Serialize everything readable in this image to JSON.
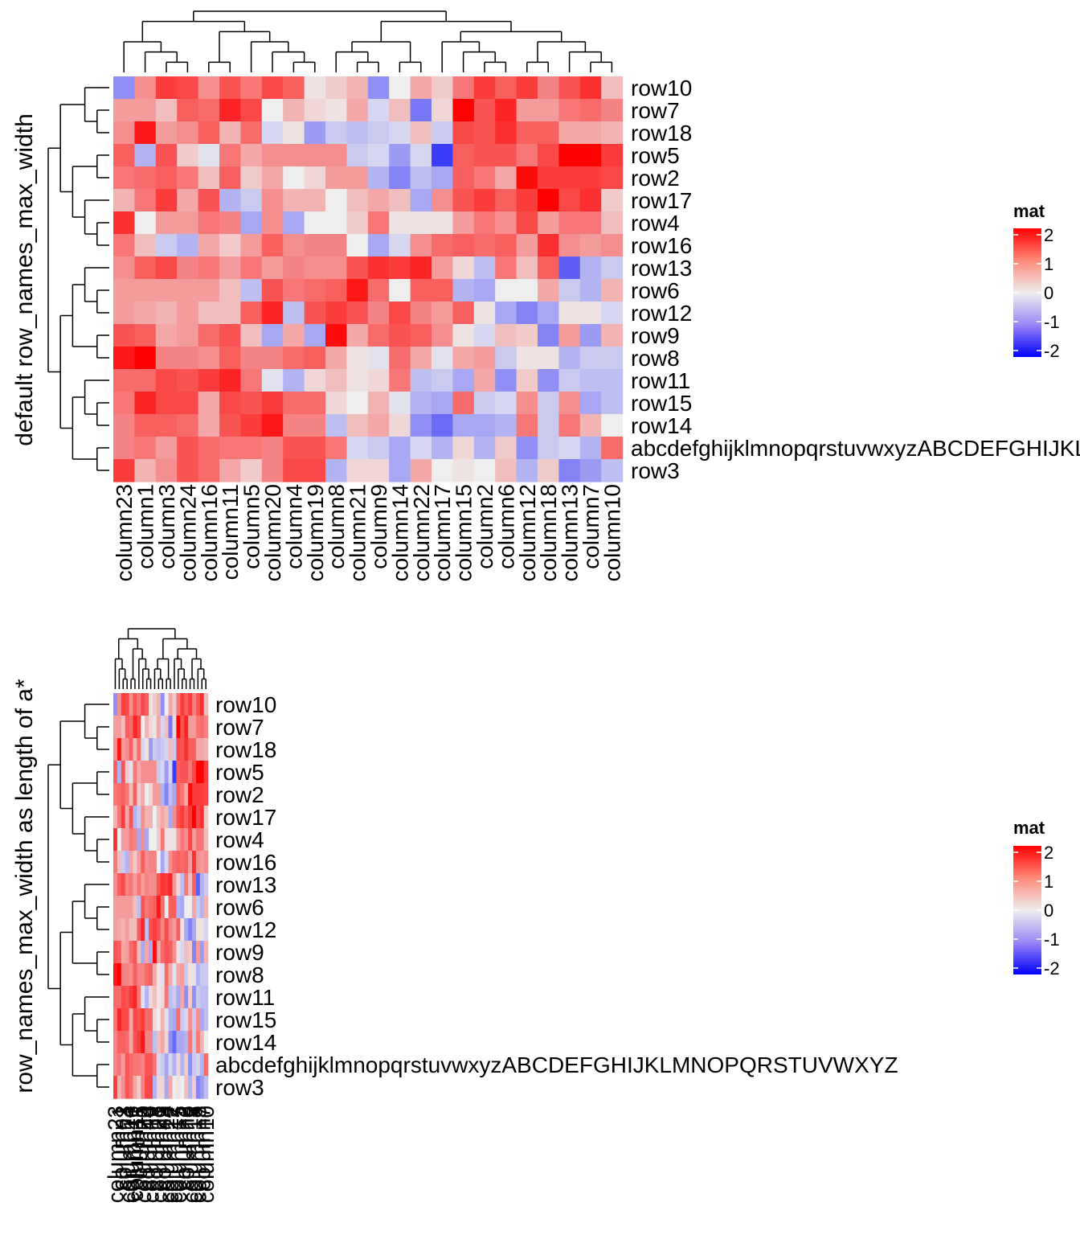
{
  "chart_data": [
    {
      "type": "heatmap",
      "title": "",
      "ylabel": "default row_names_max_width",
      "rows": [
        "row10",
        "row7",
        "row18",
        "row5",
        "row2",
        "row17",
        "row4",
        "row16",
        "row13",
        "row6",
        "row12",
        "row9",
        "row8",
        "row11",
        "row15",
        "row14",
        "abcdefghijklmnopqrstuvwxyzABCDEFGHIJKLMNOPQRSTUVWXYZ",
        "row3"
      ],
      "columns": [
        "column23",
        "column1",
        "column3",
        "column24",
        "column16",
        "column11",
        "column5",
        "column20",
        "column4",
        "column19",
        "column8",
        "column21",
        "column9",
        "column14",
        "column22",
        "column17",
        "column15",
        "column2",
        "column6",
        "column12",
        "column18",
        "column13",
        "column7",
        "column10"
      ],
      "values": [
        [
          -0.8,
          0.8,
          1.5,
          1.4,
          0.8,
          1.3,
          1.0,
          1.4,
          1.2,
          0.1,
          0.3,
          0.5,
          -0.8,
          0.0,
          0.6,
          0.3,
          1.0,
          1.5,
          1.2,
          1.5,
          0.9,
          1.3,
          1.6,
          0.4
        ],
        [
          0.7,
          0.7,
          0.4,
          1.2,
          1.1,
          1.7,
          1.4,
          0.0,
          0.5,
          0.2,
          0.1,
          0.6,
          -0.2,
          0.4,
          -1.0,
          0.2,
          2.0,
          1.3,
          1.7,
          0.7,
          0.7,
          1.0,
          1.1,
          0.9
        ],
        [
          0.8,
          1.8,
          0.7,
          0.8,
          1.2,
          0.5,
          1.1,
          -0.2,
          0.1,
          -0.7,
          -0.3,
          -0.4,
          -0.3,
          -0.2,
          0.4,
          -0.3,
          1.4,
          1.3,
          1.6,
          1.2,
          1.2,
          0.6,
          0.6,
          0.5
        ],
        [
          1.2,
          -0.5,
          1.3,
          0.3,
          -0.1,
          1.0,
          0.6,
          0.8,
          0.8,
          0.8,
          0.8,
          -0.3,
          -0.2,
          -0.7,
          -0.2,
          -1.5,
          1.2,
          1.3,
          1.3,
          1.0,
          1.4,
          2.0,
          2.0,
          1.5
        ],
        [
          1.0,
          1.1,
          1.2,
          1.0,
          0.4,
          1.2,
          0.3,
          0.6,
          0.0,
          0.2,
          0.7,
          0.7,
          -0.5,
          -0.9,
          -0.4,
          -0.6,
          1.2,
          1.0,
          0.6,
          1.9,
          1.5,
          1.5,
          1.5,
          1.4
        ],
        [
          0.5,
          1.0,
          1.5,
          0.6,
          1.3,
          -0.5,
          -0.3,
          0.8,
          0.5,
          0.5,
          0.0,
          0.4,
          0.6,
          0.4,
          -0.6,
          0.8,
          1.3,
          1.5,
          1.2,
          1.5,
          2.0,
          1.4,
          1.6,
          0.3
        ],
        [
          1.6,
          0.0,
          0.7,
          0.7,
          1.0,
          0.9,
          -0.6,
          0.8,
          -0.6,
          0.0,
          0.0,
          0.3,
          1.0,
          0.1,
          0.1,
          0.1,
          0.7,
          1.0,
          0.8,
          1.4,
          0.7,
          1.0,
          1.0,
          0.4
        ],
        [
          1.0,
          0.4,
          -0.3,
          -0.5,
          0.6,
          0.3,
          0.7,
          1.2,
          0.8,
          0.9,
          0.9,
          0.0,
          -0.6,
          -0.2,
          0.8,
          1.1,
          1.2,
          1.1,
          1.2,
          0.7,
          1.6,
          0.8,
          0.7,
          0.8
        ],
        [
          0.8,
          1.2,
          1.4,
          0.9,
          1.0,
          0.7,
          1.0,
          0.7,
          0.9,
          0.8,
          0.8,
          1.3,
          1.6,
          1.5,
          1.7,
          0.7,
          0.2,
          -0.4,
          1.0,
          0.4,
          1.2,
          -1.2,
          -0.5,
          -0.3
        ],
        [
          0.7,
          0.7,
          0.7,
          0.7,
          0.7,
          0.4,
          -0.4,
          1.3,
          1.0,
          1.1,
          1.2,
          1.8,
          1.1,
          0.0,
          1.2,
          1.2,
          -0.5,
          -0.6,
          0.0,
          0.0,
          0.6,
          -0.3,
          -0.5,
          0.5
        ],
        [
          0.7,
          0.6,
          0.5,
          0.7,
          0.4,
          0.4,
          1.2,
          1.7,
          -0.4,
          1.3,
          1.5,
          1.3,
          0.9,
          1.4,
          0.9,
          0.7,
          1.2,
          0.1,
          -0.6,
          -0.9,
          -0.6,
          0.1,
          0.1,
          -0.2
        ],
        [
          1.3,
          1.2,
          0.6,
          0.7,
          1.1,
          1.3,
          0.4,
          -0.6,
          0.6,
          -0.6,
          1.9,
          0.6,
          1.1,
          1.3,
          1.2,
          0.8,
          0.1,
          -0.2,
          0.4,
          0.3,
          -0.9,
          0.7,
          -0.7,
          0.5
        ],
        [
          1.8,
          2.0,
          0.9,
          0.9,
          0.8,
          1.2,
          0.9,
          0.9,
          1.1,
          1.2,
          0.6,
          0.1,
          -0.1,
          1.1,
          0.6,
          -0.1,
          0.6,
          0.7,
          -0.3,
          0.1,
          0.1,
          -0.5,
          -0.3,
          -0.3
        ],
        [
          1.1,
          1.1,
          1.4,
          1.3,
          1.5,
          1.7,
          1.0,
          -0.1,
          -0.5,
          0.2,
          0.4,
          0.1,
          0.2,
          1.0,
          -0.4,
          -0.3,
          -0.6,
          0.6,
          -0.8,
          0.3,
          -0.8,
          -0.3,
          -0.4,
          -0.4
        ],
        [
          1.0,
          1.7,
          1.4,
          1.4,
          0.6,
          1.4,
          1.3,
          1.5,
          1.1,
          1.1,
          0.2,
          0.0,
          0.5,
          -0.1,
          -0.5,
          -0.6,
          1.1,
          -0.3,
          -0.2,
          0.8,
          -0.3,
          0.8,
          -0.6,
          -0.4
        ],
        [
          0.9,
          1.2,
          1.2,
          1.1,
          0.6,
          1.3,
          1.5,
          1.8,
          0.9,
          0.9,
          -0.4,
          0.4,
          0.6,
          0.2,
          -0.8,
          -1.1,
          -0.6,
          -0.6,
          -0.5,
          1.0,
          -0.3,
          1.0,
          0.5,
          0.0
        ],
        [
          0.9,
          1.0,
          0.7,
          1.3,
          1.1,
          1.0,
          1.0,
          0.9,
          1.3,
          1.3,
          1.0,
          -0.2,
          -0.3,
          -0.6,
          -0.2,
          -0.5,
          0.2,
          -0.5,
          0.3,
          -0.8,
          -0.3,
          -0.2,
          -0.5,
          1.1
        ],
        [
          1.5,
          0.5,
          0.8,
          1.3,
          1.1,
          0.6,
          0.3,
          0.9,
          1.4,
          1.4,
          -0.5,
          0.2,
          0.2,
          -0.6,
          0.6,
          0.0,
          0.1,
          0.0,
          0.4,
          -0.5,
          0.3,
          -0.9,
          -0.7,
          -0.4
        ]
      ],
      "color_scale": {
        "min": -2,
        "mid": 0,
        "max": 2,
        "low_color": "#0000ff",
        "mid_color": "#eeeeee",
        "high_color": "#ff0000"
      },
      "legend": {
        "title": "mat",
        "ticks": [
          "2",
          "1",
          "0",
          "-1",
          "-2"
        ],
        "position": "right"
      }
    },
    {
      "type": "heatmap",
      "title": "",
      "ylabel": "row_names_max_width as length of a*",
      "rows": [
        "row10",
        "row7",
        "row18",
        "row5",
        "row2",
        "row17",
        "row4",
        "row16",
        "row13",
        "row6",
        "row12",
        "row9",
        "row8",
        "row11",
        "row15",
        "row14",
        "abcdefghijklmnopqrstuvwxyzABCDEFGHIJKLMNOPQRSTUVWXYZ",
        "row3"
      ],
      "columns": [
        "column23",
        "column1",
        "column3",
        "column24",
        "column16",
        "column11",
        "column5",
        "column20",
        "column4",
        "column19",
        "column8",
        "column21",
        "column9",
        "column14",
        "column22",
        "column17",
        "column15",
        "column2",
        "column6",
        "column12",
        "column18",
        "column13",
        "column7",
        "column10"
      ],
      "values": [
        [
          -0.8,
          0.8,
          1.5,
          1.4,
          0.8,
          1.3,
          1.0,
          1.4,
          1.2,
          0.1,
          0.3,
          0.5,
          -0.8,
          0.0,
          0.6,
          0.3,
          1.0,
          1.5,
          1.2,
          1.5,
          0.9,
          1.3,
          1.6,
          0.4
        ],
        [
          0.7,
          0.7,
          0.4,
          1.2,
          1.1,
          1.7,
          1.4,
          0.0,
          0.5,
          0.2,
          0.1,
          0.6,
          -0.2,
          0.4,
          -1.0,
          0.2,
          2.0,
          1.3,
          1.7,
          0.7,
          0.7,
          1.0,
          1.1,
          0.9
        ],
        [
          0.8,
          1.8,
          0.7,
          0.8,
          1.2,
          0.5,
          1.1,
          -0.2,
          0.1,
          -0.7,
          -0.3,
          -0.4,
          -0.3,
          -0.2,
          0.4,
          -0.3,
          1.4,
          1.3,
          1.6,
          1.2,
          1.2,
          0.6,
          0.6,
          0.5
        ],
        [
          1.2,
          -0.5,
          1.3,
          0.3,
          -0.1,
          1.0,
          0.6,
          0.8,
          0.8,
          0.8,
          0.8,
          -0.3,
          -0.2,
          -0.7,
          -0.2,
          -1.5,
          1.2,
          1.3,
          1.3,
          1.0,
          1.4,
          2.0,
          2.0,
          1.5
        ],
        [
          1.0,
          1.1,
          1.2,
          1.0,
          0.4,
          1.2,
          0.3,
          0.6,
          0.0,
          0.2,
          0.7,
          0.7,
          -0.5,
          -0.9,
          -0.4,
          -0.6,
          1.2,
          1.0,
          0.6,
          1.9,
          1.5,
          1.5,
          1.5,
          1.4
        ],
        [
          0.5,
          1.0,
          1.5,
          0.6,
          1.3,
          -0.5,
          -0.3,
          0.8,
          0.5,
          0.5,
          0.0,
          0.4,
          0.6,
          0.4,
          -0.6,
          0.8,
          1.3,
          1.5,
          1.2,
          1.5,
          2.0,
          1.4,
          1.6,
          0.3
        ],
        [
          1.6,
          0.0,
          0.7,
          0.7,
          1.0,
          0.9,
          -0.6,
          0.8,
          -0.6,
          0.0,
          0.0,
          0.3,
          1.0,
          0.1,
          0.1,
          0.1,
          0.7,
          1.0,
          0.8,
          1.4,
          0.7,
          1.0,
          1.0,
          0.4
        ],
        [
          1.0,
          0.4,
          -0.3,
          -0.5,
          0.6,
          0.3,
          0.7,
          1.2,
          0.8,
          0.9,
          0.9,
          0.0,
          -0.6,
          -0.2,
          0.8,
          1.1,
          1.2,
          1.1,
          1.2,
          0.7,
          1.6,
          0.8,
          0.7,
          0.8
        ],
        [
          0.8,
          1.2,
          1.4,
          0.9,
          1.0,
          0.7,
          1.0,
          0.7,
          0.9,
          0.8,
          0.8,
          1.3,
          1.6,
          1.5,
          1.7,
          0.7,
          0.2,
          -0.4,
          1.0,
          0.4,
          1.2,
          -1.2,
          -0.5,
          -0.3
        ],
        [
          0.7,
          0.7,
          0.7,
          0.7,
          0.7,
          0.4,
          -0.4,
          1.3,
          1.0,
          1.1,
          1.2,
          1.8,
          1.1,
          0.0,
          1.2,
          1.2,
          -0.5,
          -0.6,
          0.0,
          0.0,
          0.6,
          -0.3,
          -0.5,
          0.5
        ],
        [
          0.7,
          0.6,
          0.5,
          0.7,
          0.4,
          0.4,
          1.2,
          1.7,
          -0.4,
          1.3,
          1.5,
          1.3,
          0.9,
          1.4,
          0.9,
          0.7,
          1.2,
          0.1,
          -0.6,
          -0.9,
          -0.6,
          0.1,
          0.1,
          -0.2
        ],
        [
          1.3,
          1.2,
          0.6,
          0.7,
          1.1,
          1.3,
          0.4,
          -0.6,
          0.6,
          -0.6,
          1.9,
          0.6,
          1.1,
          1.3,
          1.2,
          0.8,
          0.1,
          -0.2,
          0.4,
          0.3,
          -0.9,
          0.7,
          -0.7,
          0.5
        ],
        [
          1.8,
          2.0,
          0.9,
          0.9,
          0.8,
          1.2,
          0.9,
          0.9,
          1.1,
          1.2,
          0.6,
          0.1,
          -0.1,
          1.1,
          0.6,
          -0.1,
          0.6,
          0.7,
          -0.3,
          0.1,
          0.1,
          -0.5,
          -0.3,
          -0.3
        ],
        [
          1.1,
          1.1,
          1.4,
          1.3,
          1.5,
          1.7,
          1.0,
          -0.1,
          -0.5,
          0.2,
          0.4,
          0.1,
          0.2,
          1.0,
          -0.4,
          -0.3,
          -0.6,
          0.6,
          -0.8,
          0.3,
          -0.8,
          -0.3,
          -0.4,
          -0.4
        ],
        [
          1.0,
          1.7,
          1.4,
          1.4,
          0.6,
          1.4,
          1.3,
          1.5,
          1.1,
          1.1,
          0.2,
          0.0,
          0.5,
          -0.1,
          -0.5,
          -0.6,
          1.1,
          -0.3,
          -0.2,
          0.8,
          -0.3,
          0.8,
          -0.6,
          -0.4
        ],
        [
          0.9,
          1.2,
          1.2,
          1.1,
          0.6,
          1.3,
          1.5,
          1.8,
          0.9,
          0.9,
          -0.4,
          0.4,
          0.6,
          0.2,
          -0.8,
          -1.1,
          -0.6,
          -0.6,
          -0.5,
          1.0,
          -0.3,
          1.0,
          0.5,
          0.0
        ],
        [
          0.9,
          1.0,
          0.7,
          1.3,
          1.1,
          1.0,
          1.0,
          0.9,
          1.3,
          1.3,
          1.0,
          -0.2,
          -0.3,
          -0.6,
          -0.2,
          -0.5,
          0.2,
          -0.5,
          0.3,
          -0.8,
          -0.3,
          -0.2,
          -0.5,
          1.1
        ],
        [
          1.5,
          0.5,
          0.8,
          1.3,
          1.1,
          0.6,
          0.3,
          0.9,
          1.4,
          1.4,
          -0.5,
          0.2,
          0.2,
          -0.6,
          0.6,
          0.0,
          0.1,
          0.0,
          0.4,
          -0.5,
          0.3,
          -0.9,
          -0.7,
          -0.4
        ]
      ],
      "color_scale": {
        "min": -2,
        "mid": 0,
        "max": 2,
        "low_color": "#0000ff",
        "mid_color": "#eeeeee",
        "high_color": "#ff0000"
      },
      "legend": {
        "title": "mat",
        "ticks": [
          "2",
          "1",
          "0",
          "-1",
          "-2"
        ],
        "position": "right"
      }
    }
  ]
}
